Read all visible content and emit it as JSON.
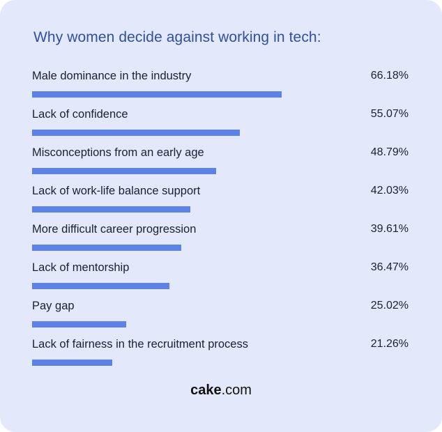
{
  "title": "Why women decide against working in tech:",
  "colors": {
    "background": "#e3e8fb",
    "bar": "#5b82e8",
    "title": "#2e4fa8",
    "text": "#1d1f2e"
  },
  "footer": {
    "brand_bold": "cake",
    "brand_rest": ".com"
  },
  "rows": [
    {
      "label": "Male dominance in the industry",
      "value": "66.18%"
    },
    {
      "label": "Lack of confidence",
      "value": "55.07%"
    },
    {
      "label": "Misconceptions from an early age",
      "value": "48.79%"
    },
    {
      "label": "Lack of work-life balance support",
      "value": "42.03%"
    },
    {
      "label": "More difficult career progression",
      "value": "39.61%"
    },
    {
      "label": "Lack of mentorship",
      "value": "36.47%"
    },
    {
      "label": "Pay gap",
      "value": "25.02%"
    },
    {
      "label": "Lack of fairness in the recruitment process",
      "value": "21.26%"
    }
  ],
  "chart_data": {
    "type": "bar",
    "orientation": "horizontal",
    "title": "Why women decide against working in tech:",
    "categories": [
      "Male dominance in the industry",
      "Lack of confidence",
      "Misconceptions from an early age",
      "Lack of work-life balance support",
      "More difficult career progression",
      "Lack of mentorship",
      "Pay gap",
      "Lack of fairness in the recruitment process"
    ],
    "values": [
      66.18,
      55.07,
      48.79,
      42.03,
      39.61,
      36.47,
      25.02,
      21.26
    ],
    "unit": "%",
    "xlabel": "",
    "ylabel": "",
    "grid": false,
    "legend": null
  }
}
